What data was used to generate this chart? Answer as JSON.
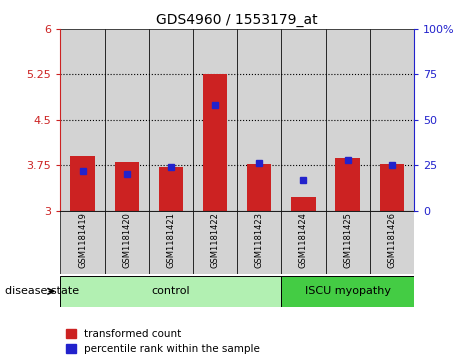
{
  "title": "GDS4960 / 1553179_at",
  "samples": [
    "GSM1181419",
    "GSM1181420",
    "GSM1181421",
    "GSM1181422",
    "GSM1181423",
    "GSM1181424",
    "GSM1181425",
    "GSM1181426"
  ],
  "red_values": [
    3.9,
    3.8,
    3.72,
    5.26,
    3.77,
    3.22,
    3.87,
    3.77
  ],
  "blue_values_pct": [
    22,
    20,
    24,
    58,
    26,
    17,
    28,
    25
  ],
  "ylim_left": [
    3.0,
    6.0
  ],
  "ylim_right": [
    0,
    100
  ],
  "yticks_left": [
    3,
    3.75,
    4.5,
    5.25,
    6
  ],
  "yticks_right": [
    0,
    25,
    50,
    75,
    100
  ],
  "ytick_labels_left": [
    "3",
    "3.75",
    "4.5",
    "5.25",
    "6"
  ],
  "ytick_labels_right": [
    "0",
    "25",
    "50",
    "75",
    "100%"
  ],
  "hlines": [
    3.75,
    4.5,
    5.25
  ],
  "bar_width": 0.55,
  "red_color": "#cc2222",
  "blue_color": "#2222cc",
  "control_label": "control",
  "iscu_label": "ISCU myopathy",
  "disease_state_label": "disease state",
  "legend_red": "transformed count",
  "legend_blue": "percentile rank within the sample",
  "control_bg": "#b2f0b2",
  "iscu_bg": "#44cc44",
  "sample_bg": "#d3d3d3",
  "n_control": 5,
  "n_iscu": 3
}
